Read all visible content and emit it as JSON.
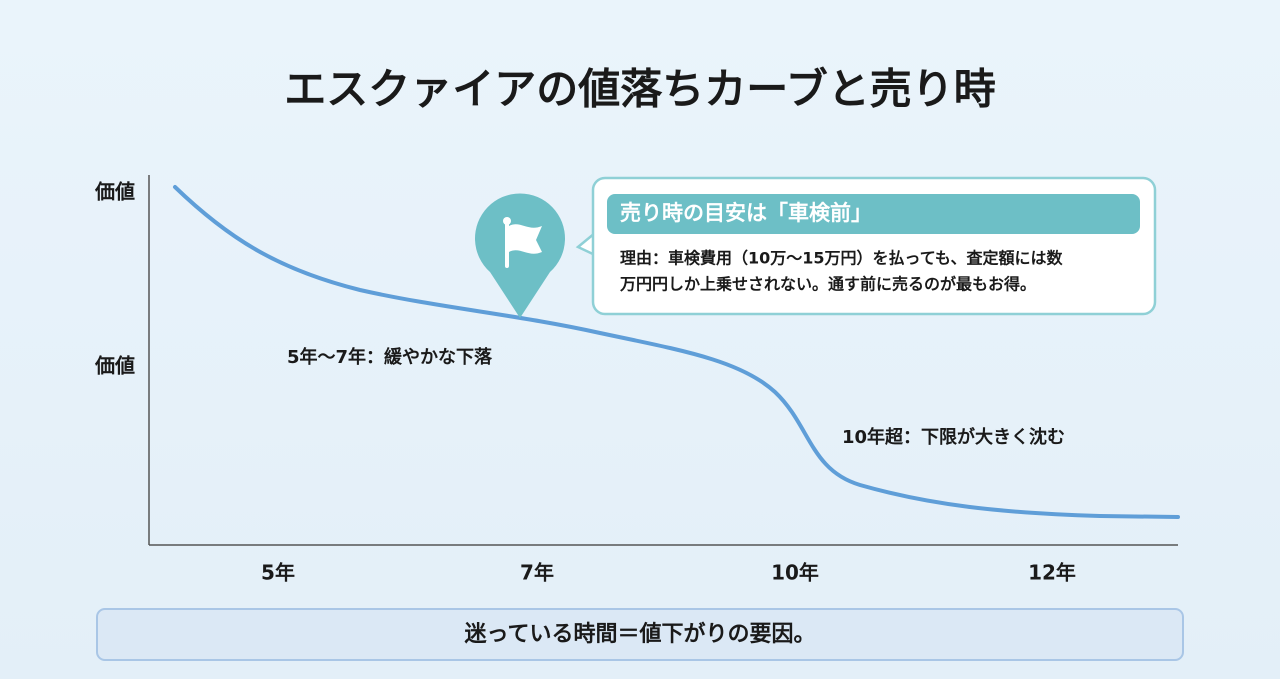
{
  "header": {
    "title": "エスクァイアの値落ちカーブと売り時"
  },
  "chart": {
    "y_labels": [
      "価値",
      "価値"
    ],
    "x_labels": [
      "5年",
      "7年",
      "10年",
      "12年"
    ],
    "annotations": [
      "5年〜7年：緩やかな下落",
      "10年超：下限が大きく沈む"
    ]
  },
  "callout": {
    "title": "売り時の目安は「車検前」",
    "lines": [
      "理由：車検費用（10万〜15万円）を払っても、査定額には数",
      "万円円しか上乗せされない。通す前に売るのが最もお得。"
    ]
  },
  "footer": {
    "text": "迷っている時間＝値下がりの要因。"
  }
}
